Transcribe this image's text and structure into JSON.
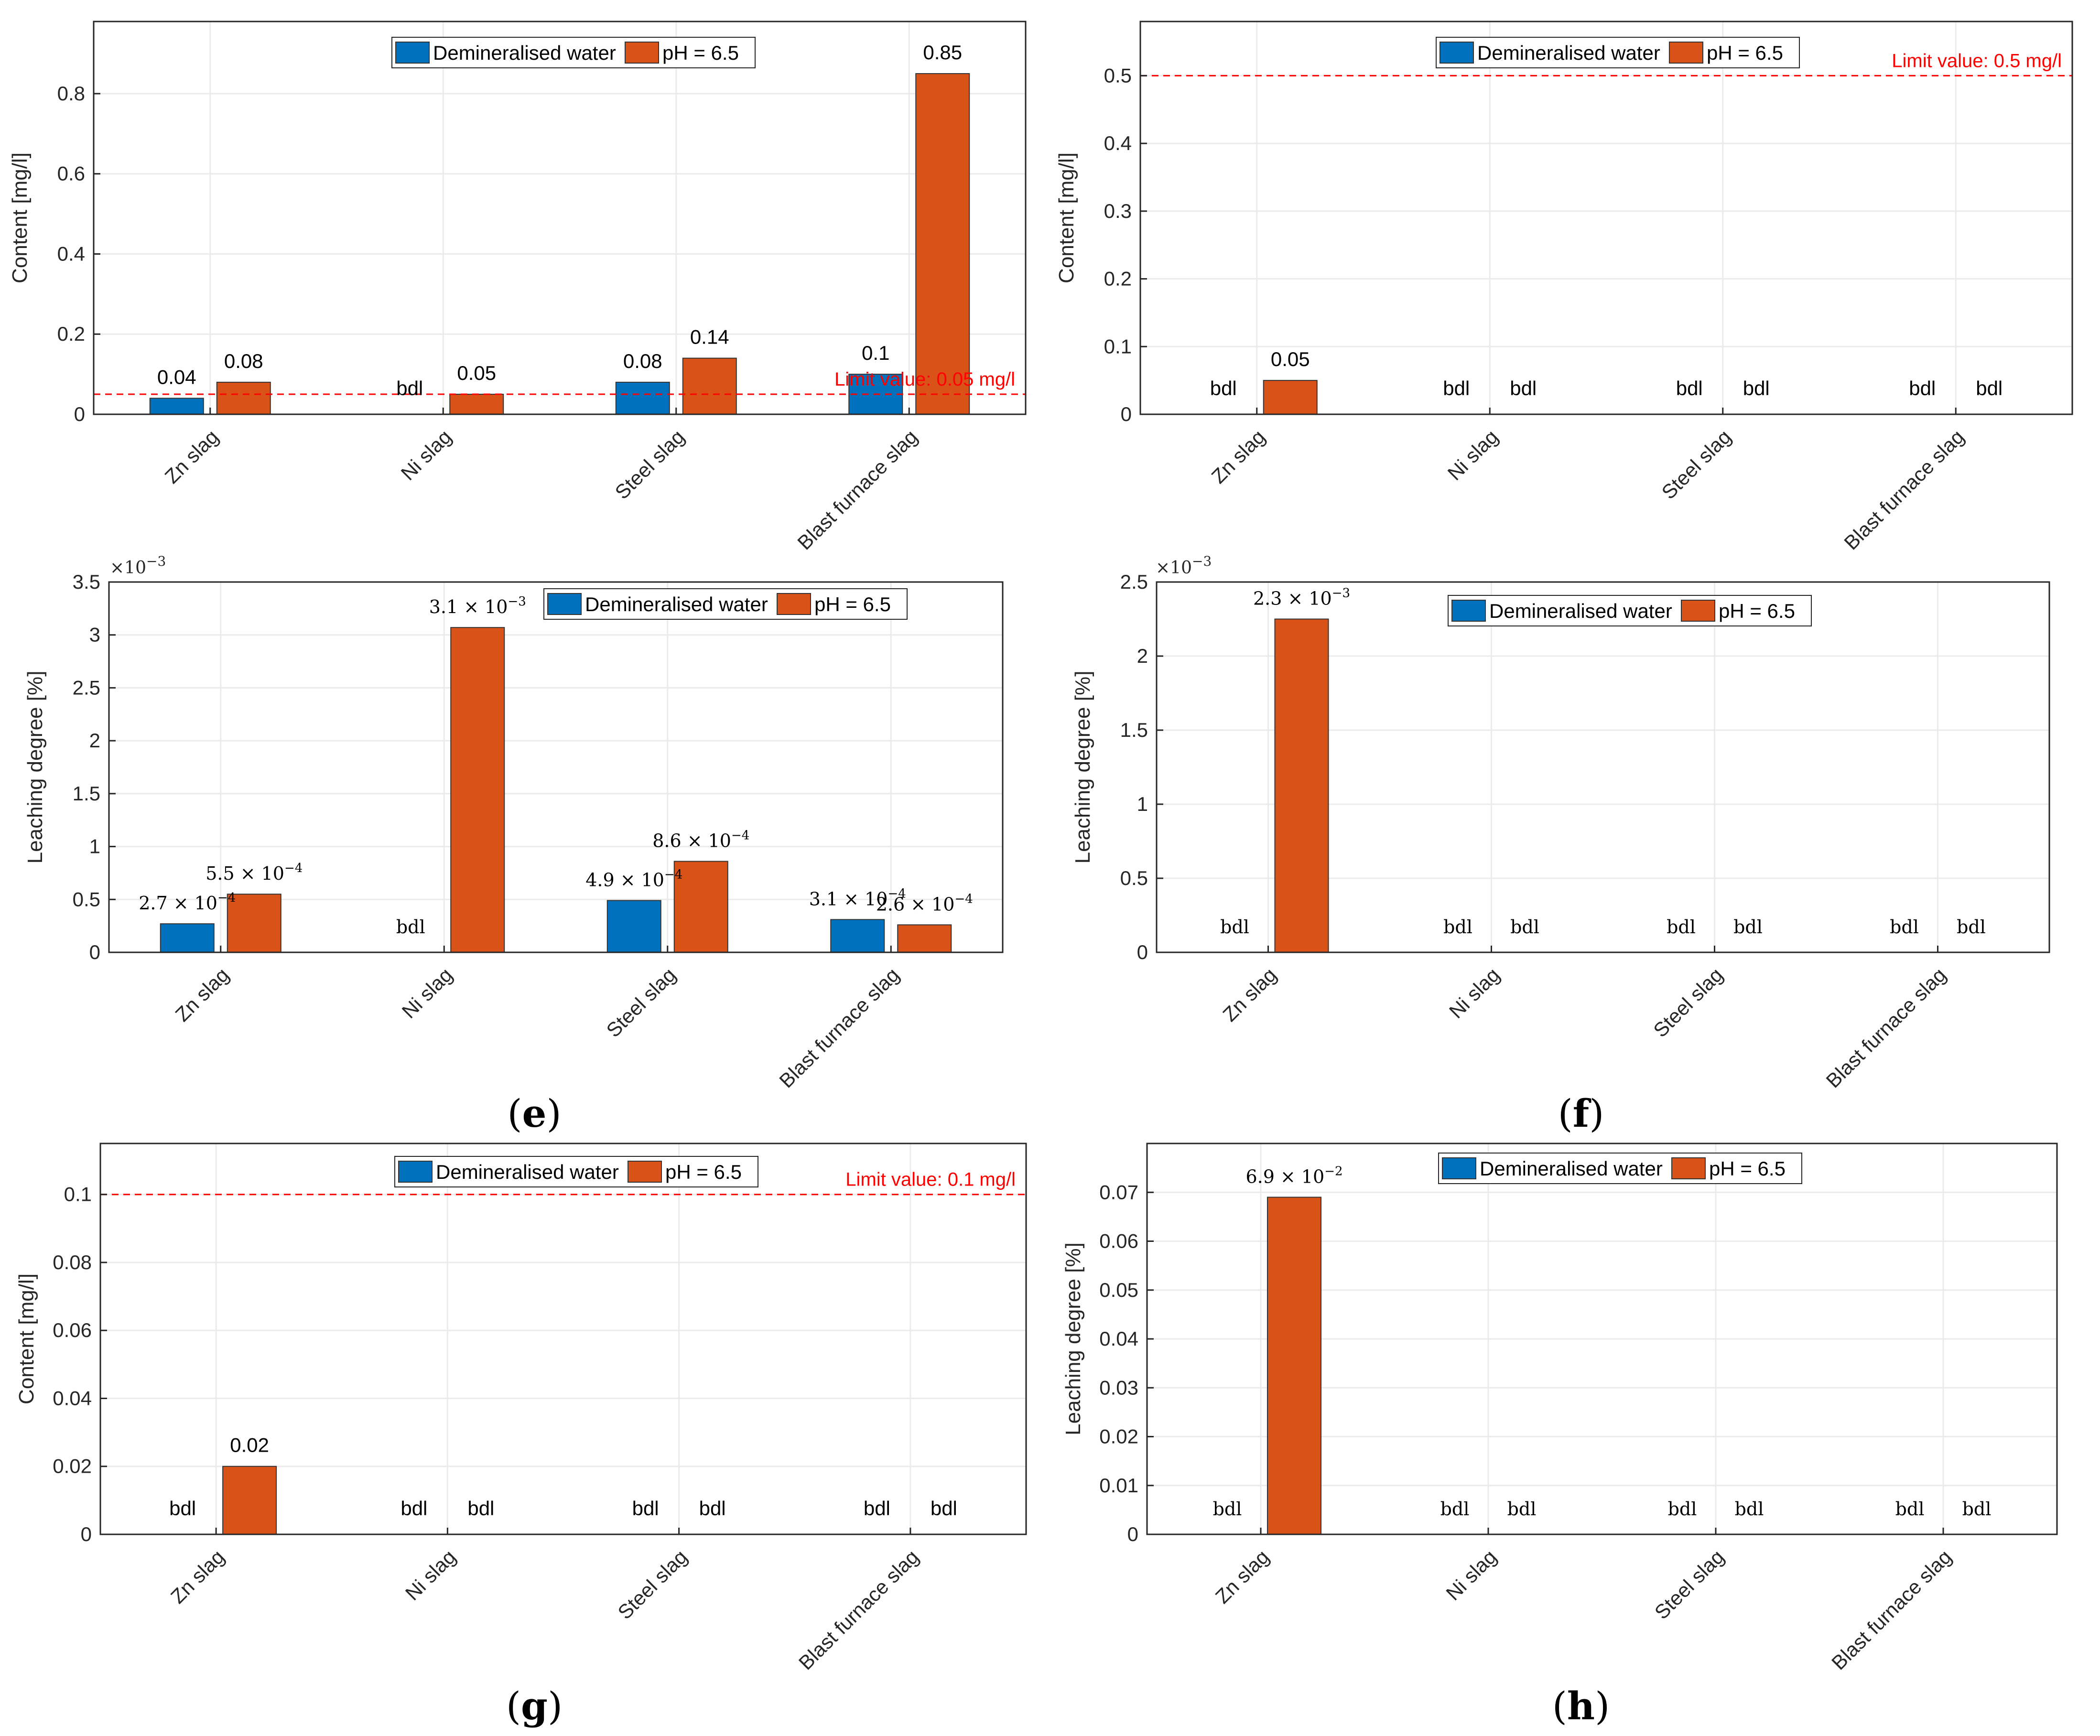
{
  "colors": {
    "demin": "#0072BD",
    "ph": "#D95319",
    "limit": "#FF0000",
    "grid": "#EBEBEB",
    "axis": "#262626"
  },
  "legend_labels": [
    "Demineralised water",
    "pH = 6.5"
  ],
  "panel_labels": {
    "e": {
      "open": "(",
      "letter": "e",
      "close": ")"
    },
    "f": {
      "open": "(",
      "letter": "f",
      "close": ")"
    },
    "g": {
      "open": "(",
      "letter": "g",
      "close": ")"
    },
    "h": {
      "open": "(",
      "letter": "h",
      "close": ")"
    }
  },
  "chart_data": [
    {
      "id": "top-left",
      "type": "bar",
      "categories": [
        "Zn slag",
        "Ni slag",
        "Steel slag",
        "Blast furnace slag"
      ],
      "ylabel": "Content [mg/l]",
      "ylim": [
        0,
        0.98
      ],
      "yticks": [
        0,
        0.2,
        0.4,
        0.6,
        0.8
      ],
      "ytick_labels": [
        "0",
        "0.2",
        "0.4",
        "0.6",
        "0.8"
      ],
      "multiplier": null,
      "grid": true,
      "legend_position": "top-center",
      "limit": {
        "value": 0.05,
        "label": "Limit value: 0.05 mg/l"
      },
      "series": [
        {
          "name": "Demineralised water",
          "values": [
            0.04,
            null,
            0.08,
            0.1
          ],
          "labels": [
            "0.04",
            "bdl",
            "0.08",
            "0.1"
          ]
        },
        {
          "name": "pH = 6.5",
          "values": [
            0.08,
            0.05,
            0.14,
            0.85
          ],
          "labels": [
            "0.08",
            "0.05",
            "0.14",
            "0.85"
          ]
        }
      ]
    },
    {
      "id": "top-right",
      "type": "bar",
      "categories": [
        "Zn slag",
        "Ni slag",
        "Steel slag",
        "Blast furnace slag"
      ],
      "ylabel": "Content [mg/l]",
      "ylim": [
        0,
        0.58
      ],
      "yticks": [
        0,
        0.1,
        0.2,
        0.3,
        0.4,
        0.5
      ],
      "ytick_labels": [
        "0",
        "0.1",
        "0.2",
        "0.3",
        "0.4",
        "0.5"
      ],
      "multiplier": null,
      "grid": true,
      "legend_position": "top-center",
      "limit": {
        "value": 0.5,
        "label": "Limit value: 0.5 mg/l"
      },
      "series": [
        {
          "name": "Demineralised water",
          "values": [
            null,
            null,
            null,
            null
          ],
          "labels": [
            "bdl",
            "bdl",
            "bdl",
            "bdl"
          ]
        },
        {
          "name": "pH = 6.5",
          "values": [
            0.05,
            null,
            null,
            null
          ],
          "labels": [
            "0.05",
            "bdl",
            "bdl",
            "bdl"
          ]
        }
      ]
    },
    {
      "id": "e",
      "type": "bar",
      "categories": [
        "Zn slag",
        "Ni slag",
        "Steel slag",
        "Blast furnace slag"
      ],
      "ylabel": "Leaching degree [%]",
      "ylim": [
        0,
        3.5
      ],
      "yticks": [
        0,
        0.5,
        1,
        1.5,
        2,
        2.5,
        3,
        3.5
      ],
      "ytick_labels": [
        "0",
        "0.5",
        "1",
        "1.5",
        "2",
        "2.5",
        "3",
        "3.5"
      ],
      "multiplier": {
        "mantissa": "×10",
        "exponent": "−3"
      },
      "grid": true,
      "legend_position": "top-center",
      "limit": null,
      "series": [
        {
          "name": "Demineralised water",
          "values": [
            0.27,
            null,
            0.49,
            0.31
          ],
          "labels": [
            {
              "m": "2.7 × 10",
              "e": "−4"
            },
            {
              "m": "bdl",
              "e": ""
            },
            {
              "m": "4.9 × 10",
              "e": "−4"
            },
            {
              "m": "3.1 × 10",
              "e": "−4"
            }
          ]
        },
        {
          "name": "pH = 6.5",
          "values": [
            0.55,
            3.07,
            0.86,
            0.26
          ],
          "labels": [
            {
              "m": "5.5 × 10",
              "e": "−4"
            },
            {
              "m": "3.1 × 10",
              "e": "−3"
            },
            {
              "m": "8.6 × 10",
              "e": "−4"
            },
            {
              "m": "2.6 × 10",
              "e": "−4"
            }
          ]
        }
      ]
    },
    {
      "id": "f",
      "type": "bar",
      "categories": [
        "Zn slag",
        "Ni slag",
        "Steel slag",
        "Blast furnace slag"
      ],
      "ylabel": "Leaching degree [%]",
      "ylim": [
        0,
        2.5
      ],
      "yticks": [
        0,
        0.5,
        1,
        1.5,
        2,
        2.5
      ],
      "ytick_labels": [
        "0",
        "0.5",
        "1",
        "1.5",
        "2",
        "2.5"
      ],
      "multiplier": {
        "mantissa": "×10",
        "exponent": "−3"
      },
      "grid": true,
      "legend_position": "top-center",
      "limit": null,
      "series": [
        {
          "name": "Demineralised water",
          "values": [
            null,
            null,
            null,
            null
          ],
          "labels": [
            {
              "m": "bdl",
              "e": ""
            },
            {
              "m": "bdl",
              "e": ""
            },
            {
              "m": "bdl",
              "e": ""
            },
            {
              "m": "bdl",
              "e": ""
            }
          ]
        },
        {
          "name": "pH = 6.5",
          "values": [
            2.25,
            null,
            null,
            null
          ],
          "labels": [
            {
              "m": "2.3 × 10",
              "e": "−3"
            },
            {
              "m": "bdl",
              "e": ""
            },
            {
              "m": "bdl",
              "e": ""
            },
            {
              "m": "bdl",
              "e": ""
            }
          ]
        }
      ]
    },
    {
      "id": "g",
      "type": "bar",
      "categories": [
        "Zn slag",
        "Ni slag",
        "Steel slag",
        "Blast furnace slag"
      ],
      "ylabel": "Content [mg/l]",
      "ylim": [
        0,
        0.115
      ],
      "yticks": [
        0,
        0.02,
        0.04,
        0.06,
        0.08,
        0.1
      ],
      "ytick_labels": [
        "0",
        "0.02",
        "0.04",
        "0.06",
        "0.08",
        "0.1"
      ],
      "multiplier": null,
      "grid": true,
      "legend_position": "top-center",
      "limit": {
        "value": 0.1,
        "label": "Limit value: 0.1 mg/l"
      },
      "series": [
        {
          "name": "Demineralised water",
          "values": [
            null,
            null,
            null,
            null
          ],
          "labels": [
            "bdl",
            "bdl",
            "bdl",
            "bdl"
          ]
        },
        {
          "name": "pH = 6.5",
          "values": [
            0.02,
            null,
            null,
            null
          ],
          "labels": [
            "0.02",
            "bdl",
            "bdl",
            "bdl"
          ]
        }
      ]
    },
    {
      "id": "h",
      "type": "bar",
      "categories": [
        "Zn slag",
        "Ni slag",
        "Steel slag",
        "Blast furnace slag"
      ],
      "ylabel": "Leaching degree [%]",
      "ylim": [
        0,
        0.08
      ],
      "yticks": [
        0,
        0.01,
        0.02,
        0.03,
        0.04,
        0.05,
        0.06,
        0.07
      ],
      "ytick_labels": [
        "0",
        "0.01",
        "0.02",
        "0.03",
        "0.04",
        "0.05",
        "0.06",
        "0.07"
      ],
      "multiplier": null,
      "grid": true,
      "legend_position": "top-center",
      "limit": null,
      "series": [
        {
          "name": "Demineralised water",
          "values": [
            null,
            null,
            null,
            null
          ],
          "labels": [
            {
              "m": "bdl",
              "e": ""
            },
            {
              "m": "bdl",
              "e": ""
            },
            {
              "m": "bdl",
              "e": ""
            },
            {
              "m": "bdl",
              "e": ""
            }
          ]
        },
        {
          "name": "pH = 6.5",
          "values": [
            0.069,
            null,
            null,
            null
          ],
          "labels": [
            {
              "m": "6.9 × 10",
              "e": "−2"
            },
            {
              "m": "bdl",
              "e": ""
            },
            {
              "m": "bdl",
              "e": ""
            },
            {
              "m": "bdl",
              "e": ""
            }
          ]
        }
      ]
    }
  ]
}
